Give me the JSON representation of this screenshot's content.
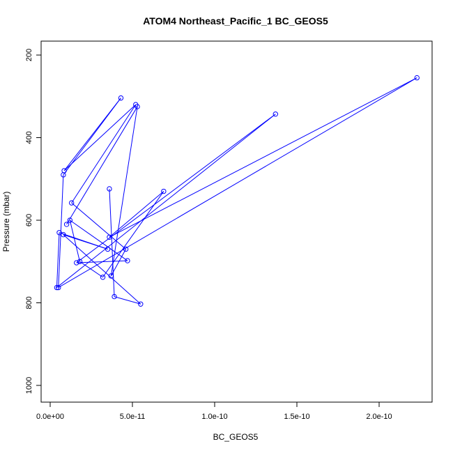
{
  "chart_data": {
    "type": "scatter",
    "title": "ATOM4 Northeast_Pacific_1 BC_GEOS5",
    "xlabel": "BC_GEOS5",
    "ylabel": "Pressure (mbar)",
    "xlim": [
      0,
      2.3e-10
    ],
    "ylim": [
      1040,
      200
    ],
    "y_reversed": true,
    "grid": false,
    "series_color": "#0000ff",
    "marker": "open-circle",
    "connected": true,
    "x_ticks": [
      {
        "value": 0,
        "label": "0.0e+00"
      },
      {
        "value": 5e-11,
        "label": "5.0e-11"
      },
      {
        "value": 1e-10,
        "label": "1.0e-10"
      },
      {
        "value": 1.5e-10,
        "label": "1.5e-10"
      },
      {
        "value": 2e-10,
        "label": "2.0e-10"
      }
    ],
    "y_ticks": [
      {
        "value": 200,
        "label": "200"
      },
      {
        "value": 400,
        "label": "400"
      },
      {
        "value": 600,
        "label": "600"
      },
      {
        "value": 800,
        "label": "800"
      },
      {
        "value": 1000,
        "label": "1000"
      }
    ],
    "series": [
      {
        "points": [
          {
            "x": 3.6e-11,
            "y": 524
          },
          {
            "x": 3.9e-11,
            "y": 785
          },
          {
            "x": 5.5e-11,
            "y": 803
          },
          {
            "x": 8e-12,
            "y": 635
          },
          {
            "x": 3.5e-11,
            "y": 670
          },
          {
            "x": 5.5e-12,
            "y": 630
          },
          {
            "x": 4e-12,
            "y": 763
          },
          {
            "x": 1.37e-10,
            "y": 343
          },
          {
            "x": 1.6e-11,
            "y": 703
          },
          {
            "x": 4.7e-11,
            "y": 698
          },
          {
            "x": 1.2e-11,
            "y": 600
          },
          {
            "x": 1.8e-11,
            "y": 700
          },
          {
            "x": 3.2e-11,
            "y": 738
          },
          {
            "x": 6.9e-11,
            "y": 530
          },
          {
            "x": 3.6e-11,
            "y": 641
          },
          {
            "x": 2.23e-10,
            "y": 255
          },
          {
            "x": 5e-12,
            "y": 763
          },
          {
            "x": 8e-12,
            "y": 490
          },
          {
            "x": 4.3e-11,
            "y": 304
          },
          {
            "x": 8.5e-12,
            "y": 480
          },
          {
            "x": 5.2e-11,
            "y": 320
          },
          {
            "x": 1.3e-11,
            "y": 558
          },
          {
            "x": 4.6e-11,
            "y": 670
          },
          {
            "x": 3.7e-11,
            "y": 735
          },
          {
            "x": 5.3e-11,
            "y": 325
          },
          {
            "x": 1e-11,
            "y": 610
          }
        ]
      }
    ]
  }
}
